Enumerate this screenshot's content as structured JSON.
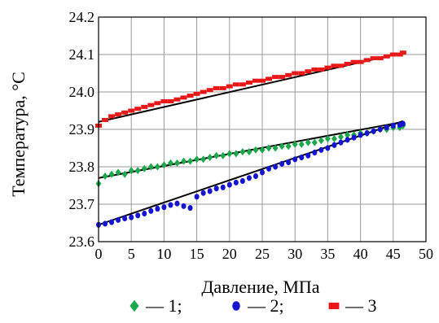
{
  "chart_data": {
    "type": "scatter",
    "title": "",
    "xlabel": "Давление, МПа",
    "ylabel": "Температура, °С",
    "xlim": [
      0,
      50
    ],
    "ylim": [
      23.6,
      24.2
    ],
    "x_ticks": [
      "0",
      "5",
      "10",
      "15",
      "20",
      "25",
      "30",
      "35",
      "40",
      "45",
      "50"
    ],
    "y_ticks": [
      "23.6",
      "23.7",
      "23.8",
      "23.9",
      "24.0",
      "24.1",
      "24.2"
    ],
    "grid": true,
    "legend_position": "bottom",
    "series": [
      {
        "name": "1",
        "legend_text": "— 1;",
        "marker": "diamond",
        "color": "#1aa84a",
        "x": [
          0,
          1,
          2,
          3,
          4,
          5,
          6,
          7,
          8,
          9,
          10,
          11,
          12,
          13,
          14,
          15,
          16,
          17,
          18,
          19,
          20,
          21,
          22,
          23,
          24,
          25,
          26,
          27,
          28,
          29,
          30,
          31,
          32,
          33,
          34,
          35,
          36,
          37,
          38,
          39,
          40,
          41,
          42,
          43,
          44,
          45,
          46,
          46.5
        ],
        "y": [
          23.755,
          23.775,
          23.78,
          23.785,
          23.78,
          23.79,
          23.79,
          23.795,
          23.8,
          23.8,
          23.805,
          23.81,
          23.81,
          23.815,
          23.815,
          23.82,
          23.82,
          23.825,
          23.83,
          23.83,
          23.835,
          23.835,
          23.84,
          23.84,
          23.845,
          23.845,
          23.85,
          23.85,
          23.855,
          23.855,
          23.86,
          23.86,
          23.865,
          23.865,
          23.87,
          23.875,
          23.875,
          23.88,
          23.885,
          23.885,
          23.89,
          23.89,
          23.895,
          23.9,
          23.9,
          23.905,
          23.905,
          23.91
        ],
        "fit": {
          "x": [
            0,
            46.5
          ],
          "y": [
            23.77,
            23.92
          ]
        }
      },
      {
        "name": "2",
        "legend_text": "— 2;",
        "marker": "circle",
        "color": "#1414d2",
        "x": [
          0,
          1,
          2,
          3,
          4,
          5,
          6,
          7,
          8,
          9,
          10,
          11,
          12,
          13,
          14,
          15,
          16,
          17,
          18,
          19,
          20,
          21,
          22,
          23,
          24,
          25,
          26,
          27,
          28,
          29,
          30,
          31,
          32,
          33,
          34,
          35,
          36,
          37,
          38,
          39,
          40,
          41,
          42,
          43,
          44,
          45,
          46,
          46.5
        ],
        "y": [
          23.645,
          23.648,
          23.652,
          23.658,
          23.662,
          23.665,
          23.67,
          23.675,
          23.682,
          23.688,
          23.692,
          23.698,
          23.702,
          23.695,
          23.69,
          23.72,
          23.73,
          23.735,
          23.742,
          23.745,
          23.752,
          23.758,
          23.762,
          23.77,
          23.775,
          23.785,
          23.795,
          23.8,
          23.808,
          23.812,
          23.82,
          23.825,
          23.83,
          23.838,
          23.845,
          23.85,
          23.858,
          23.865,
          23.872,
          23.878,
          23.885,
          23.89,
          23.895,
          23.9,
          23.905,
          23.91,
          23.912,
          23.915
        ],
        "fit": {
          "x": [
            0,
            46.5
          ],
          "y": [
            23.645,
            23.922
          ]
        }
      },
      {
        "name": "3",
        "legend_text": "— 3",
        "marker": "square",
        "color": "#e81818",
        "x": [
          0,
          1,
          2,
          3,
          4,
          5,
          6,
          7,
          8,
          9,
          10,
          11,
          12,
          13,
          14,
          15,
          16,
          17,
          18,
          19,
          20,
          21,
          22,
          23,
          24,
          25,
          26,
          27,
          28,
          29,
          30,
          31,
          32,
          33,
          34,
          35,
          36,
          37,
          38,
          39,
          40,
          41,
          42,
          43,
          44,
          45,
          46,
          46.5
        ],
        "y": [
          23.91,
          23.925,
          23.935,
          23.94,
          23.945,
          23.95,
          23.955,
          23.96,
          23.965,
          23.97,
          23.975,
          23.975,
          23.98,
          23.985,
          23.99,
          23.995,
          24.0,
          24.005,
          24.01,
          24.01,
          24.015,
          24.02,
          24.02,
          24.025,
          24.03,
          24.03,
          24.035,
          24.04,
          24.04,
          24.045,
          24.05,
          24.05,
          24.055,
          24.06,
          24.06,
          24.065,
          24.07,
          24.07,
          24.075,
          24.08,
          24.08,
          24.085,
          24.09,
          24.09,
          24.095,
          24.1,
          24.1,
          24.105
        ],
        "fit": {
          "x": [
            0,
            46.5
          ],
          "y": [
            23.92,
            24.105
          ]
        }
      }
    ]
  }
}
